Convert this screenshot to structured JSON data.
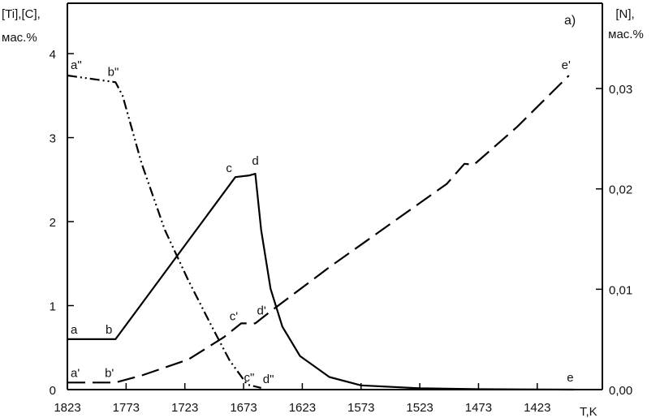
{
  "chart_data": {
    "type": "line",
    "panel_label": "а)",
    "left_axis_title_line1": "[Ti],[C],",
    "left_axis_title_line2": "мас.%",
    "right_axis_title_line1": "[N],",
    "right_axis_title_line2": "мас.%",
    "x_axis_title": "T,K",
    "x_ticks": [
      "1823",
      "1773",
      "1723",
      "1673",
      "1623",
      "1573",
      "1523",
      "1473",
      "1423"
    ],
    "x_tick_values": [
      1823,
      1773,
      1723,
      1673,
      1623,
      1573,
      1523,
      1473,
      1423
    ],
    "xlim": [
      1823,
      1380
    ],
    "x_reversed": true,
    "left_ticks": [
      "0",
      "1",
      "2",
      "3",
      "4"
    ],
    "left_tick_values": [
      0,
      1,
      2,
      3,
      4
    ],
    "left_ylim": [
      0,
      4.6
    ],
    "right_ticks": [
      "0,00",
      "0,01",
      "0,02",
      "0,03"
    ],
    "right_tick_values": [
      0,
      0.01,
      0.02,
      0.03
    ],
    "right_ylim": [
      0,
      0.0385
    ],
    "grid": false,
    "series": [
      {
        "axis": "left",
        "style": "solid",
        "color": "#000000",
        "points": [
          [
            1823,
            0.6
          ],
          [
            1792,
            0.6
          ],
          [
            1782,
            0.6
          ],
          [
            1680,
            2.53
          ],
          [
            1668,
            2.55
          ],
          [
            1663,
            2.57
          ],
          [
            1658,
            1.9
          ],
          [
            1650,
            1.2
          ],
          [
            1640,
            0.75
          ],
          [
            1625,
            0.4
          ],
          [
            1600,
            0.15
          ],
          [
            1573,
            0.05
          ],
          [
            1523,
            0.015
          ],
          [
            1473,
            0.005
          ],
          [
            1423,
            0.002
          ],
          [
            1392,
            0.0
          ]
        ]
      },
      {
        "axis": "left",
        "style": "dash-dot-dot",
        "color": "#000000",
        "points": [
          [
            1823,
            3.74
          ],
          [
            1782,
            3.66
          ],
          [
            1776,
            3.5
          ],
          [
            1760,
            2.7
          ],
          [
            1740,
            1.9
          ],
          [
            1720,
            1.3
          ],
          [
            1700,
            0.75
          ],
          [
            1685,
            0.35
          ],
          [
            1670,
            0.06
          ],
          [
            1658,
            0.02
          ]
        ]
      },
      {
        "axis": "right",
        "style": "dashed",
        "color": "#000000",
        "points": [
          [
            1823,
            0.0007
          ],
          [
            1782,
            0.0007
          ],
          [
            1760,
            0.0014
          ],
          [
            1720,
            0.003
          ],
          [
            1690,
            0.0052
          ],
          [
            1675,
            0.0066
          ],
          [
            1663,
            0.0066
          ],
          [
            1650,
            0.0078
          ],
          [
            1600,
            0.0122
          ],
          [
            1500,
            0.0205
          ],
          [
            1485,
            0.0225
          ],
          [
            1477,
            0.0224
          ],
          [
            1440,
            0.0262
          ],
          [
            1396,
            0.0313
          ]
        ]
      }
    ],
    "point_labels": [
      {
        "text": "a",
        "x": 1823,
        "y": 0.6,
        "axis": "left",
        "anchor": "start",
        "dx": 4,
        "dy": -7
      },
      {
        "text": "b",
        "x": 1782,
        "y": 0.6,
        "axis": "left",
        "anchor": "end",
        "dx": -4,
        "dy": -7
      },
      {
        "text": "c",
        "x": 1680,
        "y": 2.53,
        "axis": "left",
        "anchor": "end",
        "dx": -4,
        "dy": -6
      },
      {
        "text": "d",
        "x": 1663,
        "y": 2.57,
        "axis": "left",
        "anchor": "middle",
        "dx": 0,
        "dy": -11
      },
      {
        "text": "e",
        "x": 1392,
        "y": 0.0,
        "axis": "left",
        "anchor": "end",
        "dx": 0,
        "dy": -10
      },
      {
        "text": "a'",
        "x": 1823,
        "y": 0.0007,
        "axis": "right",
        "anchor": "start",
        "dx": 4,
        "dy": -7
      },
      {
        "text": "b'",
        "x": 1782,
        "y": 0.0007,
        "axis": "right",
        "anchor": "end",
        "dx": -2,
        "dy": -7
      },
      {
        "text": "c'",
        "x": 1675,
        "y": 0.0066,
        "axis": "right",
        "anchor": "end",
        "dx": -4,
        "dy": -4
      },
      {
        "text": "d'",
        "x": 1663,
        "y": 0.0066,
        "axis": "right",
        "anchor": "start",
        "dx": 2,
        "dy": -11
      },
      {
        "text": "e'",
        "x": 1396,
        "y": 0.0313,
        "axis": "right",
        "anchor": "end",
        "dx": 2,
        "dy": -8
      },
      {
        "text": "a\"",
        "x": 1823,
        "y": 3.74,
        "axis": "left",
        "anchor": "start",
        "dx": 4,
        "dy": -8
      },
      {
        "text": "b\"",
        "x": 1782,
        "y": 3.66,
        "axis": "left",
        "anchor": "end",
        "dx": 4,
        "dy": -8
      },
      {
        "text": "c\"",
        "x": 1668,
        "y": 0.06,
        "axis": "left",
        "anchor": "end",
        "dx": 6,
        "dy": -4
      },
      {
        "text": "d\"",
        "x": 1658,
        "y": 0.02,
        "axis": "left",
        "anchor": "start",
        "dx": 2,
        "dy": -6
      }
    ]
  }
}
